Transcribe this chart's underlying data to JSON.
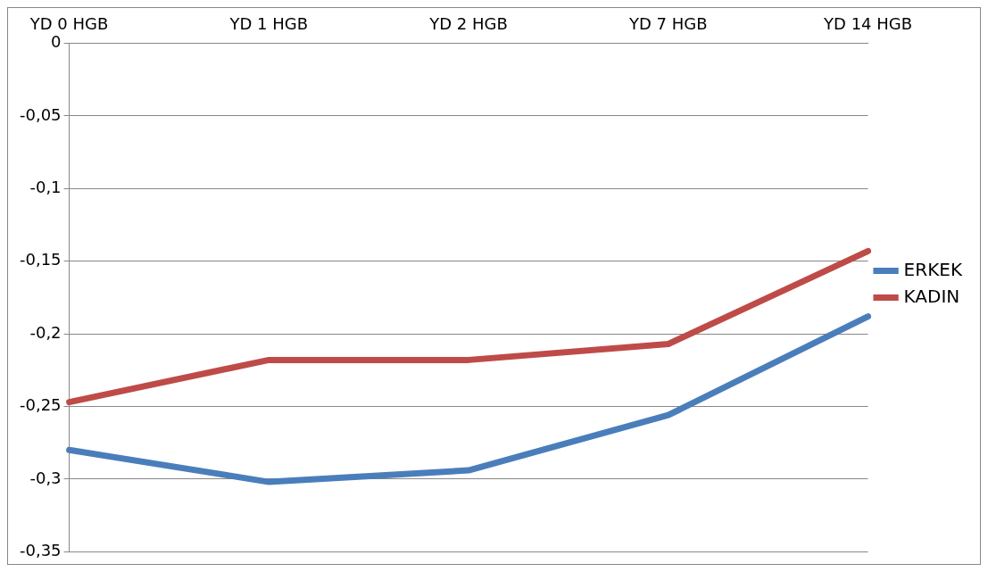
{
  "chart_data": {
    "type": "line",
    "categories": [
      "YD 0 HGB",
      "YD 1 HGB",
      "YD 2 HGB",
      "YD 7 HGB",
      "YD 14 HGB"
    ],
    "series": [
      {
        "name": "ERKEK",
        "color": "#4a7ebb",
        "values": [
          -0.28,
          -0.302,
          -0.294,
          -0.256,
          -0.188
        ]
      },
      {
        "name": "KADIN",
        "color": "#be4b48",
        "values": [
          -0.247,
          -0.218,
          -0.218,
          -0.207,
          -0.143
        ]
      }
    ],
    "ylim": [
      -0.35,
      0
    ],
    "yticks": [
      0,
      {
        "value": -0.05,
        "label": "-0,05"
      },
      {
        "value": -0.1,
        "label": "-0,1"
      },
      {
        "value": -0.15,
        "label": "-0,15"
      },
      {
        "value": -0.2,
        "label": "-0,2"
      },
      {
        "value": -0.25,
        "label": "-0,25"
      },
      {
        "value": -0.3,
        "label": "-0,3"
      },
      {
        "value": -0.35,
        "label": "-0,35"
      }
    ],
    "grid": "y",
    "legend": "right",
    "marker": "none",
    "line_style": "solid"
  }
}
